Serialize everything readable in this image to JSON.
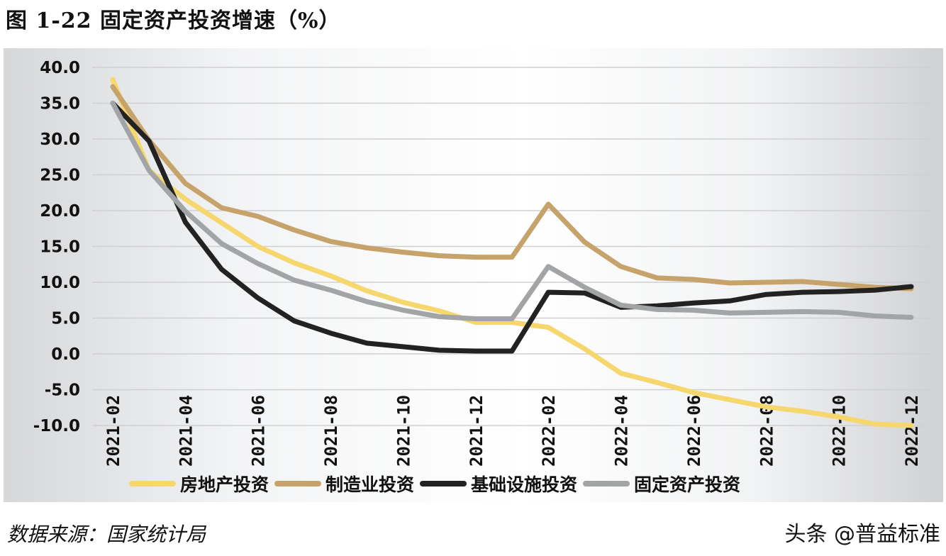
{
  "title": "图 1-22  固定资产投资增速（%）",
  "source": "数据来源：国家统计局",
  "watermark": "头条 @普益标准",
  "chart_data": {
    "type": "line",
    "title": "图 1-22 固定资产投资增速（%）",
    "xlabel": "",
    "ylabel": "",
    "ylim": [
      -10,
      40
    ],
    "yticks": [
      "40.0",
      "35.0",
      "30.0",
      "25.0",
      "20.0",
      "15.0",
      "10.0",
      "5.0",
      "0.0",
      "-5.0",
      "-10.0"
    ],
    "grid": true,
    "legend_position": "bottom",
    "x": [
      "2021-02",
      "2021-03",
      "2021-04",
      "2021-05",
      "2021-06",
      "2021-07",
      "2021-08",
      "2021-09",
      "2021-10",
      "2021-11",
      "2021-12",
      "2022-01",
      "2022-02",
      "2022-03",
      "2022-04",
      "2022-05",
      "2022-06",
      "2022-07",
      "2022-08",
      "2022-09",
      "2022-10",
      "2022-11",
      "2022-12"
    ],
    "xtick_labels": [
      "2021-02",
      "2021-04",
      "2021-06",
      "2021-08",
      "2021-10",
      "2021-12",
      "2022-02",
      "2022-04",
      "2022-06",
      "2022-08",
      "2022-10",
      "2022-12"
    ],
    "series": [
      {
        "name": "房地产投资",
        "color": "#f5d76e",
        "values": [
          38.3,
          25.6,
          21.6,
          18.3,
          15.0,
          12.7,
          10.9,
          8.8,
          7.2,
          6.0,
          4.4,
          4.4,
          3.7,
          0.7,
          -2.7,
          -4.0,
          -5.4,
          -6.4,
          -7.4,
          -8.0,
          -8.8,
          -9.8,
          -10.0
        ]
      },
      {
        "name": "制造业投资",
        "color": "#c6a36a",
        "values": [
          37.3,
          29.8,
          23.8,
          20.4,
          19.2,
          17.3,
          15.7,
          14.8,
          14.2,
          13.7,
          13.5,
          13.5,
          20.9,
          15.6,
          12.2,
          10.6,
          10.4,
          9.9,
          10.0,
          10.1,
          9.7,
          9.3,
          9.1
        ]
      },
      {
        "name": "基础设施投资",
        "color": "#222222",
        "values": [
          35.0,
          29.7,
          18.4,
          11.8,
          7.8,
          4.6,
          2.9,
          1.5,
          1.0,
          0.5,
          0.4,
          0.4,
          8.6,
          8.5,
          6.5,
          6.7,
          7.1,
          7.4,
          8.3,
          8.6,
          8.7,
          8.9,
          9.4
        ]
      },
      {
        "name": "固定资产投资",
        "color": "#a3a4a6",
        "values": [
          35.0,
          25.6,
          19.9,
          15.4,
          12.6,
          10.3,
          8.9,
          7.3,
          6.1,
          5.2,
          4.9,
          4.9,
          12.2,
          9.3,
          6.8,
          6.2,
          6.1,
          5.7,
          5.8,
          5.9,
          5.8,
          5.3,
          5.1
        ]
      }
    ]
  },
  "legend": [
    {
      "label": "房地产投资",
      "color": "#f5d76e"
    },
    {
      "label": "制造业投资",
      "color": "#c6a36a"
    },
    {
      "label": "基础设施投资",
      "color": "#222222"
    },
    {
      "label": "固定资产投资",
      "color": "#a3a4a6"
    }
  ]
}
